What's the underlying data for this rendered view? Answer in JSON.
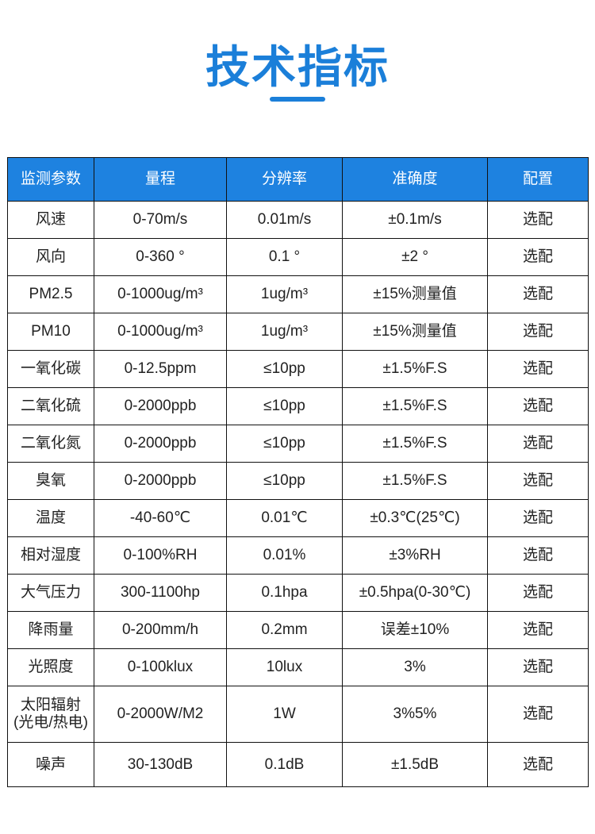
{
  "title": "技术指标",
  "colors": {
    "accent": "#1b7fd9",
    "header_bg": "#1e82e0"
  },
  "table": {
    "headers": [
      "监测参数",
      "量程",
      "分辨率",
      "准确度",
      "配置"
    ],
    "rows": [
      [
        "风速",
        "0-70m/s",
        "0.01m/s",
        "±0.1m/s",
        "选配"
      ],
      [
        "风向",
        "0-360 °",
        "0.1 °",
        "±2 °",
        "选配"
      ],
      [
        "PM2.5",
        "0-1000ug/m³",
        "1ug/m³",
        "±15%测量值",
        "选配"
      ],
      [
        "PM10",
        "0-1000ug/m³",
        "1ug/m³",
        "±15%测量值",
        "选配"
      ],
      [
        "一氧化碳",
        "0-12.5ppm",
        "≤10pp",
        "±1.5%F.S",
        "选配"
      ],
      [
        "二氧化硫",
        "0-2000ppb",
        "≤10pp",
        "±1.5%F.S",
        "选配"
      ],
      [
        "二氧化氮",
        "0-2000ppb",
        "≤10pp",
        "±1.5%F.S",
        "选配"
      ],
      [
        "臭氧",
        "0-2000ppb",
        "≤10pp",
        "±1.5%F.S",
        "选配"
      ],
      [
        "温度",
        "-40-60℃",
        "0.01℃",
        "±0.3℃(25℃)",
        "选配"
      ],
      [
        "相对湿度",
        "0-100%RH",
        "0.01%",
        "±3%RH",
        "选配"
      ],
      [
        "大气压力",
        "300-1100hp",
        "0.1hpa",
        "±0.5hpa(0-30℃)",
        "选配"
      ],
      [
        "降雨量",
        "0-200mm/h",
        "0.2mm",
        "误差±10%",
        "选配"
      ],
      [
        "光照度",
        "0-100klux",
        "10lux",
        "3%",
        "选配"
      ],
      [
        "太阳辐射\n(光电/热电)",
        "0-2000W/M2",
        "1W",
        "3%5%",
        "选配"
      ],
      [
        "噪声",
        "30-130dB",
        "0.1dB",
        "±1.5dB",
        "选配"
      ]
    ]
  }
}
